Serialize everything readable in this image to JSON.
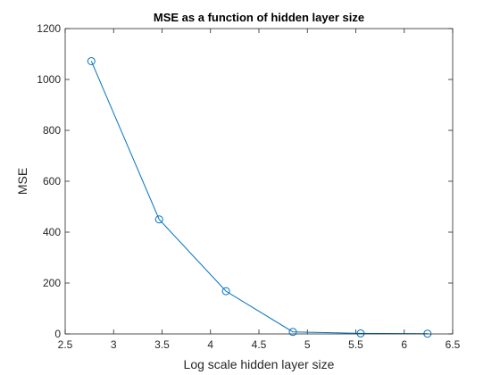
{
  "chart_data": {
    "type": "line",
    "title": "MSE as a function of hidden layer size",
    "xlabel": "Log scale hidden layer size",
    "ylabel": "MSE",
    "xlim": [
      2.5,
      6.5
    ],
    "ylim": [
      0,
      1200
    ],
    "xticks": [
      2.5,
      3,
      3.5,
      4,
      4.5,
      5,
      5.5,
      6,
      6.5
    ],
    "xtick_labels": [
      "2.5",
      "3",
      "3.5",
      "4",
      "4.5",
      "5",
      "5.5",
      "6",
      "6.5"
    ],
    "yticks": [
      0,
      200,
      400,
      600,
      800,
      1000,
      1200
    ],
    "ytick_labels": [
      "0",
      "200",
      "400",
      "600",
      "800",
      "1000",
      "1200"
    ],
    "grid": false,
    "series": [
      {
        "x": [
          2.77,
          3.47,
          4.16,
          4.85,
          5.55,
          6.24
        ],
        "y": [
          1072,
          450,
          168,
          8,
          2,
          1
        ],
        "color": "#0072BD",
        "marker": "circle"
      }
    ]
  }
}
